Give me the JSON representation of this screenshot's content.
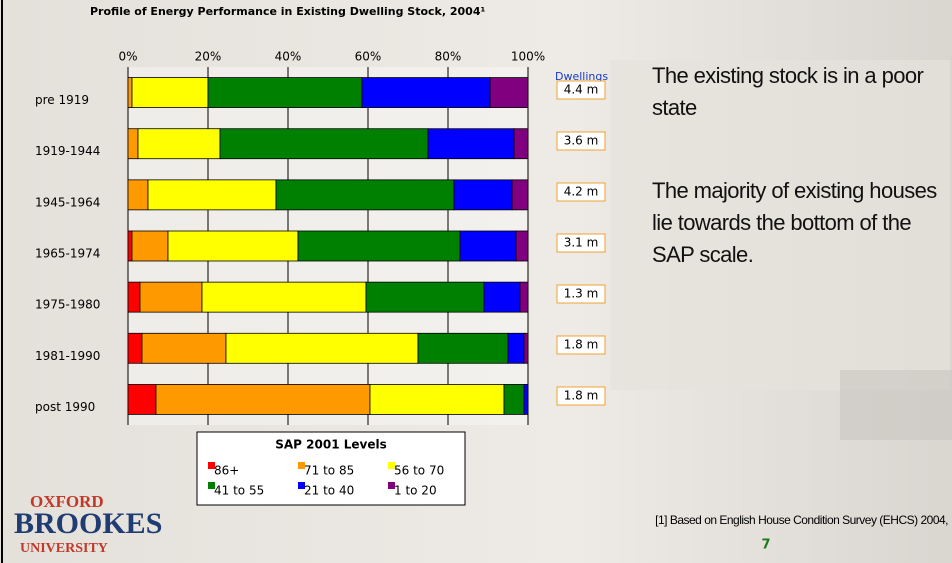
{
  "chart_data": {
    "type": "stacked_barh",
    "title": "Profile of Energy Performance in Existing Dwelling Stock, 2004¹",
    "categories": [
      "pre 1919",
      "1919-1944",
      "1945-1964",
      "1965-1974",
      "1975-1980",
      "1981-1990",
      "post 1990"
    ],
    "series": [
      {
        "name": "86+",
        "color": "#ff0000",
        "values": [
          0,
          0,
          0,
          1,
          3,
          3.5,
          7
        ]
      },
      {
        "name": "71 to 85",
        "color": "#ff9900",
        "values": [
          1,
          2.5,
          5,
          9,
          15.5,
          21,
          53.5
        ]
      },
      {
        "name": "56 to 70",
        "color": "#ffff00",
        "values": [
          19,
          20.5,
          32,
          32.5,
          41,
          48,
          33.5
        ]
      },
      {
        "name": "41 to 55",
        "color": "#008000",
        "values": [
          38.5,
          52,
          44.5,
          40.5,
          29.5,
          22.5,
          5
        ]
      },
      {
        "name": "21 to 40",
        "color": "#0000ff",
        "values": [
          32,
          21.5,
          14.5,
          14,
          9,
          4,
          1
        ]
      },
      {
        "name": "1 to 20",
        "color": "#800080",
        "values": [
          9.5,
          3.5,
          4,
          3,
          2,
          1,
          0
        ]
      }
    ],
    "xlim": [
      0,
      100
    ],
    "xticks": [
      {
        "value": 0,
        "label": "0%"
      },
      {
        "value": 20,
        "label": "20%"
      },
      {
        "value": 40,
        "label": "40%"
      },
      {
        "value": 60,
        "label": "60%"
      },
      {
        "value": 80,
        "label": "80%"
      },
      {
        "value": 100,
        "label": "100%"
      }
    ],
    "grid": true,
    "legend_title": "SAP 2001 Levels",
    "legend": "bottom",
    "dwellings_label": "Dwellings",
    "dwellings": [
      "4.4 m",
      "3.6 m",
      "4.2 m",
      "3.1 m",
      "1.3 m",
      "1.8 m",
      "1.8 m"
    ]
  },
  "slide": {
    "points": [
      "The existing stock is in a poor state",
      "The majority of existing houses lie towards the bottom of the SAP scale."
    ],
    "footnote": "[1] Based on English House Condition Survey (EHCS) 2004,",
    "page": "7",
    "logo": [
      "OXFORD",
      "BROOKES",
      "UNIVERSITY"
    ]
  }
}
